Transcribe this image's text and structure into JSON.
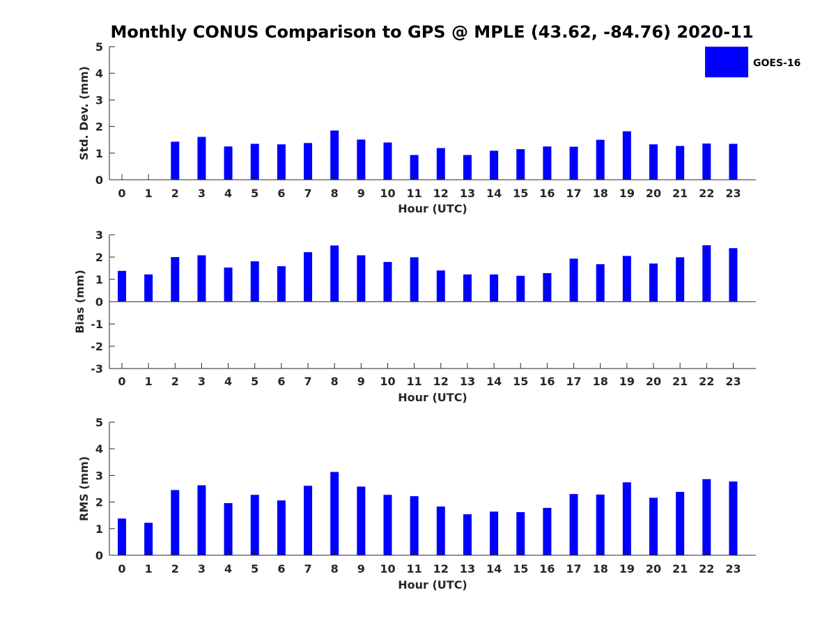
{
  "title": "Monthly CONUS Comparison to GPS @ MPLE (43.62, -84.76) 2020-11",
  "legend": {
    "label": "GOES-16",
    "color": "#0000ff"
  },
  "bar_color": "#0000ff",
  "chart_data": [
    {
      "type": "bar",
      "ylabel": "Std. Dev. (mm)",
      "xlabel": "Hour (UTC)",
      "ylim": [
        0,
        5
      ],
      "yticks": [
        0,
        1,
        2,
        3,
        4,
        5
      ],
      "categories": [
        "0",
        "1",
        "2",
        "3",
        "4",
        "5",
        "6",
        "7",
        "8",
        "9",
        "10",
        "11",
        "12",
        "13",
        "14",
        "15",
        "16",
        "17",
        "18",
        "19",
        "20",
        "21",
        "22",
        "23"
      ],
      "values": [
        0,
        0,
        1.43,
        1.61,
        1.25,
        1.35,
        1.33,
        1.38,
        1.85,
        1.51,
        1.4,
        0.93,
        1.19,
        0.93,
        1.09,
        1.15,
        1.25,
        1.24,
        1.5,
        1.82,
        1.33,
        1.27,
        1.36,
        1.35
      ],
      "legend": "top-right",
      "grid": false
    },
    {
      "type": "bar",
      "ylabel": "Bias (mm)",
      "xlabel": "Hour (UTC)",
      "ylim": [
        -3,
        3
      ],
      "yticks": [
        -3,
        -2,
        -1,
        0,
        1,
        2,
        3
      ],
      "categories": [
        "0",
        "1",
        "2",
        "3",
        "4",
        "5",
        "6",
        "7",
        "8",
        "9",
        "10",
        "11",
        "12",
        "13",
        "14",
        "15",
        "16",
        "17",
        "18",
        "19",
        "20",
        "21",
        "22",
        "23"
      ],
      "values": [
        1.38,
        1.22,
        2.0,
        2.08,
        1.53,
        1.81,
        1.59,
        2.22,
        2.52,
        2.08,
        1.78,
        1.99,
        1.4,
        1.22,
        1.22,
        1.16,
        1.28,
        1.93,
        1.68,
        2.05,
        1.71,
        1.99,
        2.53,
        2.4
      ],
      "grid": false
    },
    {
      "type": "bar",
      "ylabel": "RMS (mm)",
      "xlabel": "Hour (UTC)",
      "ylim": [
        0,
        5
      ],
      "yticks": [
        0,
        1,
        2,
        3,
        4,
        5
      ],
      "categories": [
        "0",
        "1",
        "2",
        "3",
        "4",
        "5",
        "6",
        "7",
        "8",
        "9",
        "10",
        "11",
        "12",
        "13",
        "14",
        "15",
        "16",
        "17",
        "18",
        "19",
        "20",
        "21",
        "22",
        "23"
      ],
      "values": [
        1.38,
        1.22,
        2.45,
        2.63,
        1.96,
        2.27,
        2.06,
        2.61,
        3.13,
        2.58,
        2.27,
        2.22,
        1.83,
        1.54,
        1.64,
        1.62,
        1.78,
        2.3,
        2.28,
        2.74,
        2.16,
        2.38,
        2.86,
        2.77
      ],
      "grid": false
    }
  ]
}
